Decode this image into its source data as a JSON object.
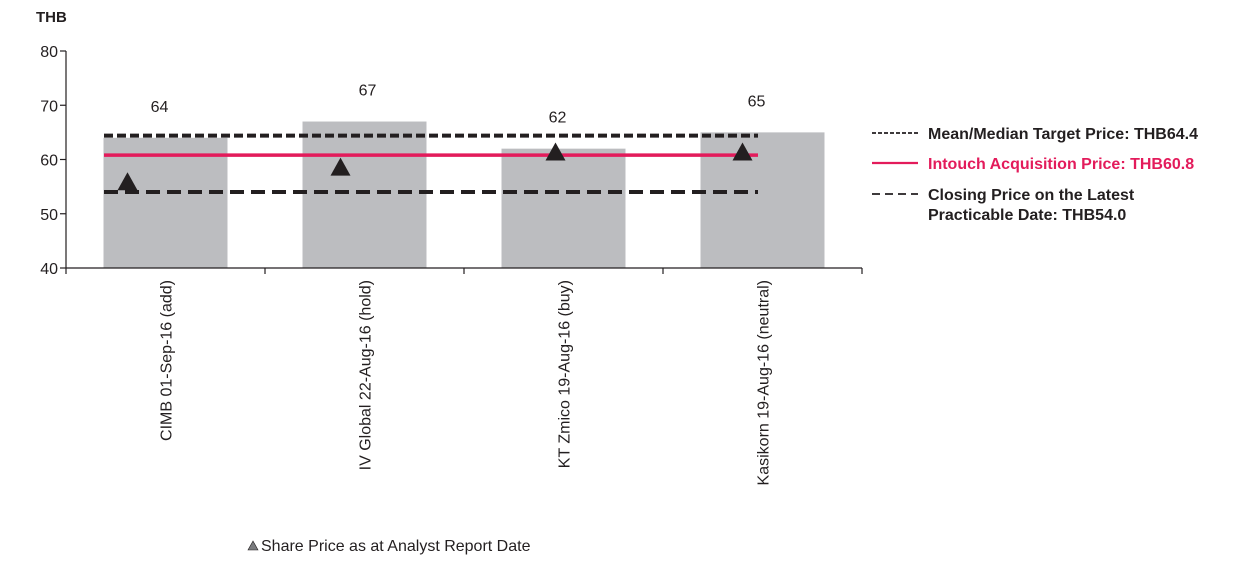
{
  "chart_data": {
    "type": "bar",
    "unit_label": "THB",
    "categories": [
      "CIMB 01-Sep-16 (add)",
      "IV Global 22-Aug-16 (hold)",
      "KT Zmico 19-Aug-16 (buy)",
      "Kasikorn 19-Aug-16 (neutral)"
    ],
    "series": [
      {
        "kind": "bar",
        "values": [
          64,
          67,
          62,
          65
        ],
        "data_labels": [
          "64",
          "67",
          "62",
          "65"
        ],
        "color": "#bcbdc0"
      },
      {
        "kind": "marker-triangle",
        "values": [
          55.8,
          58.5,
          61.3,
          61.3
        ],
        "color": "#231f20"
      }
    ],
    "reference_lines": [
      {
        "value": 64.4,
        "style": "dashed-fine",
        "color": "#231f20",
        "legend": "Mean/Median Target Price: THB64.4"
      },
      {
        "value": 60.8,
        "style": "solid",
        "color": "#e31b5b",
        "legend": "Intouch Acquisition Price: THB60.8"
      },
      {
        "value": 54.0,
        "style": "dashed-coarse",
        "color": "#231f20",
        "legend_lines": [
          "Closing Price on the Latest",
          "Practicable Date: THB54.0"
        ]
      }
    ],
    "marker_legend": "Share Price as at Analyst Report Date",
    "ylim": [
      40,
      80
    ],
    "yticks": [
      "40",
      "50",
      "60",
      "70",
      "80"
    ],
    "grid": false,
    "legend_position": "right"
  }
}
